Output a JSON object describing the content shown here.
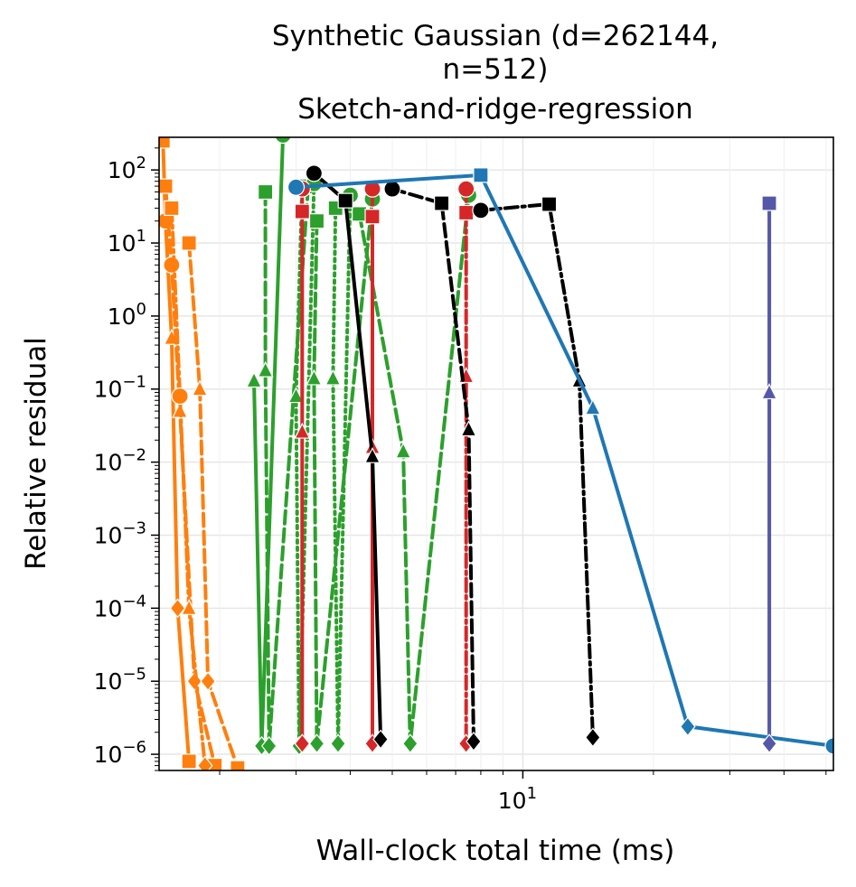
{
  "chart_data": {
    "type": "line",
    "title": [
      "Synthetic Gaussian (d=262144,",
      "n=512)",
      "Sketch-and-ridge-regression"
    ],
    "xlabel": "Wall-clock total time (ms)",
    "ylabel": "Relative residual",
    "xscale": "log",
    "yscale": "log",
    "xlim": [
      1.45,
      52
    ],
    "ylim": [
      6e-07,
      280
    ],
    "grid": true,
    "legend": "none",
    "x_ticks": [
      {
        "value": 10,
        "label": "10^1"
      }
    ],
    "y_ticks": [
      {
        "value": 100,
        "label": "10^2"
      },
      {
        "value": 10,
        "label": "10^1"
      },
      {
        "value": 1,
        "label": "10^0"
      },
      {
        "value": 0.1,
        "label": "10^-1"
      },
      {
        "value": 0.01,
        "label": "10^-2"
      },
      {
        "value": 0.001,
        "label": "10^-3"
      },
      {
        "value": 0.0001,
        "label": "10^-4"
      },
      {
        "value": 1e-05,
        "label": "10^-5"
      },
      {
        "value": 1e-06,
        "label": "10^-6"
      }
    ],
    "series": [
      {
        "color": "#ff7f0e",
        "dash": "solid",
        "markers": [
          "s",
          "o",
          "^",
          "D"
        ],
        "x": [
          1.48,
          1.5,
          1.55,
          1.6,
          1.7
        ],
        "y": [
          250,
          20,
          0.5,
          0.0001,
          8e-07
        ]
      },
      {
        "color": "#ff7f0e",
        "dash": "dashed",
        "markers": [
          "s",
          "o",
          "^",
          "D"
        ],
        "x": [
          1.5,
          1.55,
          1.62,
          1.75,
          1.95
        ],
        "y": [
          60,
          5,
          0.05,
          1e-05,
          7e-07
        ]
      },
      {
        "color": "#ff7f0e",
        "dash": "dashdot",
        "markers": [
          "s",
          "o",
          "^",
          "D"
        ],
        "x": [
          1.55,
          1.62,
          1.7,
          1.85
        ],
        "y": [
          30,
          0.08,
          0.0001,
          7e-07
        ]
      },
      {
        "color": "#ff7f0e",
        "dash": "dashed",
        "markers": [
          "s",
          "^",
          "D"
        ],
        "x": [
          1.7,
          1.8,
          1.88,
          2.2
        ],
        "y": [
          10,
          0.1,
          1e-05,
          6.5e-07
        ]
      },
      {
        "color": "#2ca02c",
        "dash": "solid",
        "markers": [
          "^",
          "D",
          "o"
        ],
        "x": [
          2.4,
          2.5,
          2.8
        ],
        "y": [
          0.13,
          1.3e-06,
          300
        ]
      },
      {
        "color": "#2ca02c",
        "dash": "dashed",
        "markers": [
          "s",
          "^",
          "D",
          "o"
        ],
        "x": [
          2.55,
          2.55,
          2.6,
          3.2
        ],
        "y": [
          50,
          0.18,
          1.3e-06,
          60
        ]
      },
      {
        "color": "#2ca02c",
        "dash": "dotted",
        "markers": [
          "s",
          "^",
          "D",
          "o"
        ],
        "x": [
          3.1,
          3.0,
          3.05,
          3.3
        ],
        "y": [
          60,
          0.08,
          1.3e-06,
          65
        ]
      },
      {
        "color": "#2ca02c",
        "dash": "dashed",
        "markers": [
          "s",
          "^",
          "D",
          "o"
        ],
        "x": [
          3.35,
          3.3,
          3.35,
          4.5
        ],
        "y": [
          20,
          0.14,
          1.4e-06,
          40
        ]
      },
      {
        "color": "#2ca02c",
        "dash": "dotted",
        "markers": [
          "s",
          "^",
          "D",
          "o"
        ],
        "x": [
          3.7,
          3.65,
          3.75,
          4.0
        ],
        "y": [
          30,
          0.14,
          1.4e-06,
          45
        ]
      },
      {
        "color": "#2ca02c",
        "dash": "dashed",
        "markers": [
          "s",
          "^",
          "D",
          "o"
        ],
        "x": [
          4.2,
          5.3,
          5.5,
          7.5
        ],
        "y": [
          25,
          0.014,
          1.4e-06,
          45
        ]
      },
      {
        "color": "#d62728",
        "dash": "solid",
        "markers": [
          "s",
          "^",
          "D",
          "o"
        ],
        "x": [
          3.1,
          3.1,
          3.1,
          3.1
        ],
        "y": [
          27,
          0.026,
          1.4e-06,
          55
        ]
      },
      {
        "color": "#d62728",
        "dash": "dashed",
        "markers": [
          "s",
          "^",
          "D",
          "o"
        ],
        "x": [
          4.5,
          4.5,
          4.5,
          4.5
        ],
        "y": [
          23,
          0.016,
          1.4e-06,
          55
        ]
      },
      {
        "color": "#d62728",
        "dash": "dashdot",
        "markers": [
          "s",
          "^",
          "D",
          "o"
        ],
        "x": [
          7.4,
          7.4,
          7.4,
          7.4
        ],
        "y": [
          26,
          0.15,
          1.4e-06,
          55
        ]
      },
      {
        "color": "#000000",
        "dash": "solid",
        "markers": [
          "o",
          "s",
          "^",
          "D"
        ],
        "x": [
          3.3,
          3.9,
          4.5,
          4.7
        ],
        "y": [
          90,
          38,
          0.012,
          1.6e-06
        ]
      },
      {
        "color": "#000000",
        "dash": "dashed",
        "markers": [
          "o",
          "s",
          "^",
          "D"
        ],
        "x": [
          5.0,
          6.5,
          7.5,
          7.7
        ],
        "y": [
          55,
          35,
          0.028,
          1.5e-06
        ]
      },
      {
        "color": "#000000",
        "dash": "dashdot",
        "markers": [
          "o",
          "s",
          "^",
          "D"
        ],
        "x": [
          8.0,
          11.5,
          13.5,
          14.5
        ],
        "y": [
          28,
          34,
          0.13,
          1.7e-06
        ]
      },
      {
        "color": "#1f77b4",
        "dash": "solid",
        "markers": [
          "o",
          "s",
          "^",
          "D"
        ],
        "x": [
          3.0,
          8.0,
          14.5,
          24,
          52
        ],
        "y": [
          58,
          85,
          0.055,
          2.4e-06,
          1.3e-06
        ]
      },
      {
        "color": "#5558a8",
        "dash": "solid",
        "markers": [
          "s",
          "^",
          "D"
        ],
        "x": [
          37,
          37,
          37
        ],
        "y": [
          35,
          0.09,
          1.4e-06
        ]
      }
    ]
  }
}
